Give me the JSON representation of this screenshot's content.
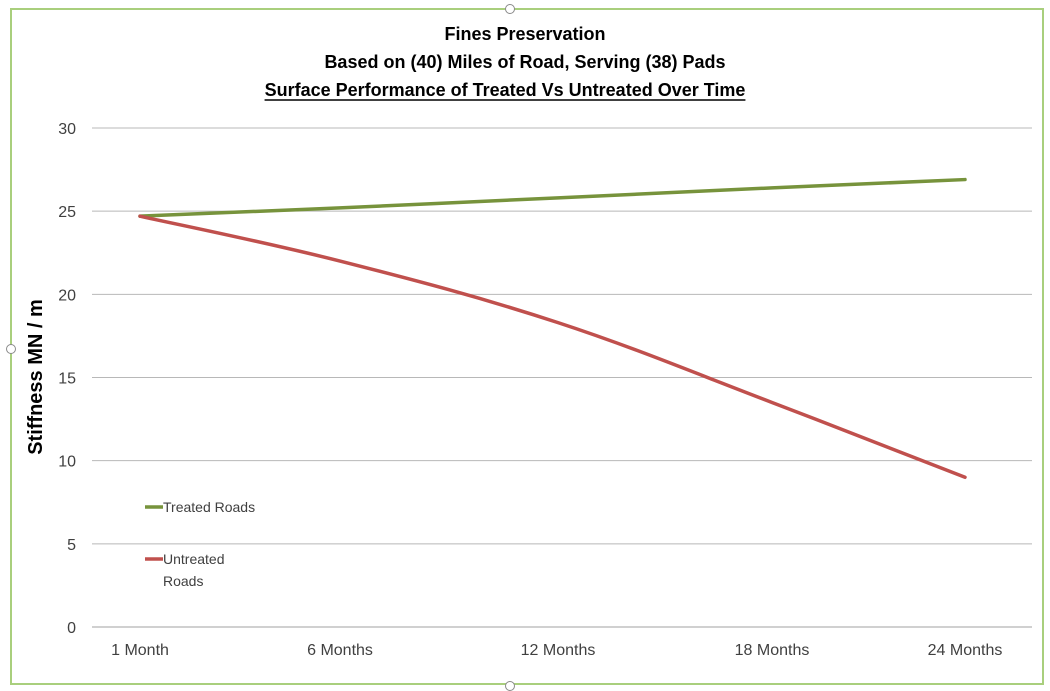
{
  "chart_data": {
    "type": "line",
    "title": "Fines Preservation",
    "subtitle": "Based on (40) Miles of Road, Serving (38) Pads",
    "subtitle2": "Surface Performance of Treated Vs Untreated Over Time",
    "xlabel": "",
    "ylabel": "Stiffness MN / m",
    "categories": [
      "1 Month",
      "6 Months",
      "12 Months",
      "18 Months",
      "24 Months"
    ],
    "ylim": [
      0,
      30
    ],
    "yticks": [
      0,
      5,
      10,
      15,
      20,
      25,
      30
    ],
    "grid": true,
    "legend_position": "bottom-left",
    "series": [
      {
        "name": "Treated Roads",
        "color": "#77933c",
        "values": [
          24.7,
          25.2,
          25.8,
          26.4,
          26.9
        ]
      },
      {
        "name": "Untreated Roads",
        "color": "#c0504d",
        "values": [
          24.7,
          22.0,
          18.3,
          13.5,
          9.0
        ]
      }
    ]
  },
  "legend": {
    "treated_label": "Treated Roads",
    "untreated_label_line1": "Untreated",
    "untreated_label_line2": "Roads"
  }
}
